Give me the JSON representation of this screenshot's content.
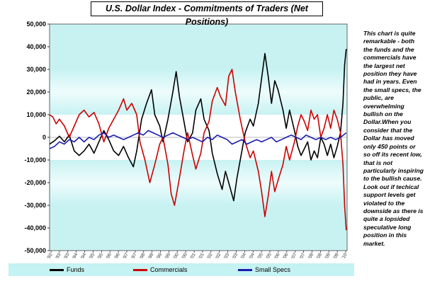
{
  "chart_data": {
    "type": "line",
    "title": "U.S. Dollar Index  - Commitments of Traders (Net Positions)",
    "ylim": [
      -50000,
      50000
    ],
    "y_ticks": [
      "-50,000",
      "-40,000",
      "-30,000",
      "-20,000",
      "-10,000",
      "0",
      "10,000",
      "20,000",
      "30,000",
      "40,000",
      "50,000"
    ],
    "x_ticks": [
      "'92",
      "'93",
      "'93",
      "'94",
      "'94",
      "'95",
      "'95",
      "'96",
      "'96",
      "'97",
      "'97",
      "'98",
      "'98",
      "'99",
      "'99",
      "'00",
      "'00",
      "'01",
      "'01",
      "'02",
      "'02",
      "'03",
      "'03",
      "'04",
      "'04",
      "'05",
      "'05",
      "'06",
      "'06",
      "'07",
      "'07",
      "'08",
      "'08",
      "'09",
      "'09",
      "'10"
    ],
    "x_range": [
      1992.0,
      2010.1
    ],
    "grid": false,
    "legend_position": "bottom",
    "series": [
      {
        "name": "Funds",
        "color": "#000000",
        "points": [
          [
            1992.0,
            -3000
          ],
          [
            1992.3,
            -1500
          ],
          [
            1992.6,
            500
          ],
          [
            1992.9,
            -2000
          ],
          [
            1993.2,
            1000
          ],
          [
            1993.5,
            -6000
          ],
          [
            1993.8,
            -8000
          ],
          [
            1994.1,
            -6000
          ],
          [
            1994.4,
            -3000
          ],
          [
            1994.7,
            -7000
          ],
          [
            1995.0,
            -2000
          ],
          [
            1995.3,
            3000
          ],
          [
            1995.6,
            -1000
          ],
          [
            1995.9,
            -6000
          ],
          [
            1996.2,
            -8000
          ],
          [
            1996.5,
            -4000
          ],
          [
            1996.8,
            -9000
          ],
          [
            1997.1,
            -13000
          ],
          [
            1997.3,
            -6000
          ],
          [
            1997.6,
            8000
          ],
          [
            1997.9,
            15000
          ],
          [
            1998.2,
            21000
          ],
          [
            1998.4,
            10000
          ],
          [
            1998.7,
            5000
          ],
          [
            1998.9,
            -2000
          ],
          [
            1999.2,
            8000
          ],
          [
            1999.5,
            20000
          ],
          [
            1999.7,
            29000
          ],
          [
            1999.9,
            18000
          ],
          [
            2000.2,
            6000
          ],
          [
            2000.4,
            -2000
          ],
          [
            2000.7,
            2000
          ],
          [
            2000.9,
            12000
          ],
          [
            2001.2,
            17000
          ],
          [
            2001.4,
            8000
          ],
          [
            2001.7,
            3000
          ],
          [
            2001.9,
            -7000
          ],
          [
            2002.2,
            -16000
          ],
          [
            2002.5,
            -23000
          ],
          [
            2002.7,
            -15000
          ],
          [
            2002.9,
            -20000
          ],
          [
            2003.2,
            -28000
          ],
          [
            2003.4,
            -18000
          ],
          [
            2003.7,
            -6000
          ],
          [
            2003.9,
            2000
          ],
          [
            2004.2,
            8000
          ],
          [
            2004.4,
            5000
          ],
          [
            2004.7,
            15000
          ],
          [
            2004.9,
            26000
          ],
          [
            2005.1,
            37000
          ],
          [
            2005.3,
            27000
          ],
          [
            2005.5,
            15000
          ],
          [
            2005.7,
            25000
          ],
          [
            2005.9,
            21000
          ],
          [
            2006.2,
            12000
          ],
          [
            2006.4,
            4000
          ],
          [
            2006.6,
            12000
          ],
          [
            2006.9,
            3000
          ],
          [
            2007.1,
            -4000
          ],
          [
            2007.3,
            -8000
          ],
          [
            2007.5,
            -5000
          ],
          [
            2007.7,
            -2000
          ],
          [
            2007.9,
            -10000
          ],
          [
            2008.1,
            -6000
          ],
          [
            2008.3,
            -9000
          ],
          [
            2008.5,
            0
          ],
          [
            2008.7,
            -3000
          ],
          [
            2008.9,
            -8000
          ],
          [
            2009.1,
            -3000
          ],
          [
            2009.3,
            -9000
          ],
          [
            2009.5,
            -4000
          ],
          [
            2009.7,
            2000
          ],
          [
            2009.85,
            15000
          ],
          [
            2009.95,
            32000
          ],
          [
            2010.05,
            39000
          ]
        ]
      },
      {
        "name": "Commercials",
        "color": "#cc0000",
        "points": [
          [
            1992.0,
            10000
          ],
          [
            1992.2,
            9000
          ],
          [
            1992.4,
            6000
          ],
          [
            1992.6,
            8000
          ],
          [
            1992.9,
            5000
          ],
          [
            1993.2,
            0
          ],
          [
            1993.5,
            5000
          ],
          [
            1993.8,
            10000
          ],
          [
            1994.1,
            12000
          ],
          [
            1994.4,
            9000
          ],
          [
            1994.7,
            11000
          ],
          [
            1995.0,
            6000
          ],
          [
            1995.3,
            -2000
          ],
          [
            1995.6,
            4000
          ],
          [
            1995.9,
            8000
          ],
          [
            1996.2,
            12000
          ],
          [
            1996.5,
            17000
          ],
          [
            1996.7,
            12000
          ],
          [
            1997.0,
            15000
          ],
          [
            1997.3,
            10000
          ],
          [
            1997.5,
            -2000
          ],
          [
            1997.8,
            -10000
          ],
          [
            1998.1,
            -20000
          ],
          [
            1998.4,
            -12000
          ],
          [
            1998.7,
            -3000
          ],
          [
            1998.9,
            0
          ],
          [
            1999.2,
            -12000
          ],
          [
            1999.4,
            -25000
          ],
          [
            1999.6,
            -30000
          ],
          [
            1999.9,
            -18000
          ],
          [
            2000.2,
            -5000
          ],
          [
            2000.4,
            2000
          ],
          [
            2000.7,
            -8000
          ],
          [
            2000.9,
            -14000
          ],
          [
            2001.2,
            -7000
          ],
          [
            2001.4,
            2000
          ],
          [
            2001.7,
            7000
          ],
          [
            2001.9,
            16000
          ],
          [
            2002.2,
            22000
          ],
          [
            2002.4,
            18000
          ],
          [
            2002.7,
            14000
          ],
          [
            2002.9,
            27000
          ],
          [
            2003.1,
            30000
          ],
          [
            2003.3,
            20000
          ],
          [
            2003.6,
            8000
          ],
          [
            2003.9,
            -2000
          ],
          [
            2004.2,
            -9000
          ],
          [
            2004.4,
            -6000
          ],
          [
            2004.7,
            -15000
          ],
          [
            2004.9,
            -24000
          ],
          [
            2005.1,
            -35000
          ],
          [
            2005.3,
            -26000
          ],
          [
            2005.5,
            -15000
          ],
          [
            2005.7,
            -24000
          ],
          [
            2005.9,
            -19000
          ],
          [
            2006.2,
            -12000
          ],
          [
            2006.4,
            -4000
          ],
          [
            2006.6,
            -10000
          ],
          [
            2006.9,
            -2000
          ],
          [
            2007.1,
            5000
          ],
          [
            2007.3,
            10000
          ],
          [
            2007.5,
            7000
          ],
          [
            2007.7,
            3000
          ],
          [
            2007.9,
            12000
          ],
          [
            2008.1,
            8000
          ],
          [
            2008.3,
            10000
          ],
          [
            2008.5,
            0
          ],
          [
            2008.7,
            4000
          ],
          [
            2008.9,
            10000
          ],
          [
            2009.1,
            4000
          ],
          [
            2009.3,
            12000
          ],
          [
            2009.5,
            8000
          ],
          [
            2009.7,
            2000
          ],
          [
            2009.85,
            -12000
          ],
          [
            2009.95,
            -30000
          ],
          [
            2010.05,
            -41000
          ]
        ]
      },
      {
        "name": "Small Specs",
        "color": "#1a1ab0",
        "points": [
          [
            1992.0,
            -5000
          ],
          [
            1992.3,
            -4000
          ],
          [
            1992.6,
            -2000
          ],
          [
            1992.9,
            -3000
          ],
          [
            1993.2,
            -1000
          ],
          [
            1993.5,
            -2000
          ],
          [
            1993.8,
            0
          ],
          [
            1994.1,
            -2000
          ],
          [
            1994.4,
            0
          ],
          [
            1994.7,
            -1000
          ],
          [
            1995.0,
            1000
          ],
          [
            1995.3,
            2000
          ],
          [
            1995.6,
            0
          ],
          [
            1995.9,
            1000
          ],
          [
            1996.2,
            0
          ],
          [
            1996.5,
            -1000
          ],
          [
            1996.8,
            0
          ],
          [
            1997.1,
            1000
          ],
          [
            1997.4,
            2000
          ],
          [
            1997.7,
            1000
          ],
          [
            1998.0,
            3000
          ],
          [
            1998.3,
            2000
          ],
          [
            1998.6,
            1000
          ],
          [
            1998.9,
            0
          ],
          [
            1999.2,
            1000
          ],
          [
            1999.5,
            2000
          ],
          [
            1999.8,
            1000
          ],
          [
            2000.1,
            0
          ],
          [
            2000.4,
            -1000
          ],
          [
            2000.7,
            0
          ],
          [
            2001.0,
            -1000
          ],
          [
            2001.3,
            -2000
          ],
          [
            2001.6,
            0
          ],
          [
            2001.9,
            -1000
          ],
          [
            2002.2,
            1000
          ],
          [
            2002.5,
            0
          ],
          [
            2002.8,
            -1000
          ],
          [
            2003.1,
            -3000
          ],
          [
            2003.4,
            -2000
          ],
          [
            2003.7,
            -1000
          ],
          [
            2004.0,
            -3000
          ],
          [
            2004.3,
            -2000
          ],
          [
            2004.6,
            -1000
          ],
          [
            2004.9,
            -2000
          ],
          [
            2005.2,
            -1000
          ],
          [
            2005.5,
            0
          ],
          [
            2005.8,
            -2000
          ],
          [
            2006.1,
            -1000
          ],
          [
            2006.4,
            0
          ],
          [
            2006.7,
            1000
          ],
          [
            2007.0,
            0
          ],
          [
            2007.3,
            -1000
          ],
          [
            2007.6,
            1000
          ],
          [
            2007.9,
            0
          ],
          [
            2008.2,
            -1000
          ],
          [
            2008.5,
            0
          ],
          [
            2008.8,
            -1000
          ],
          [
            2009.1,
            0
          ],
          [
            2009.4,
            -1000
          ],
          [
            2009.7,
            0
          ],
          [
            2010.05,
            2000
          ]
        ]
      }
    ]
  },
  "commentary": "This chart is quite remarkable - both the funds and the commercials have the largest net position they have had in years. Even the small specs, the public, are overwhelming bullish on the Dollar.When you consider that the Dollar has moved only 450 points or so off its recent low, that is not particularly inspiring to the bullish cause. Look out if techical support levels get violated to the downside as there is quite a lopsided speculative long position in this market.",
  "colors": {
    "plot_background": "#c8f2f2",
    "band_light": "#e6fafa",
    "legend_background": "#c5f2f2"
  }
}
